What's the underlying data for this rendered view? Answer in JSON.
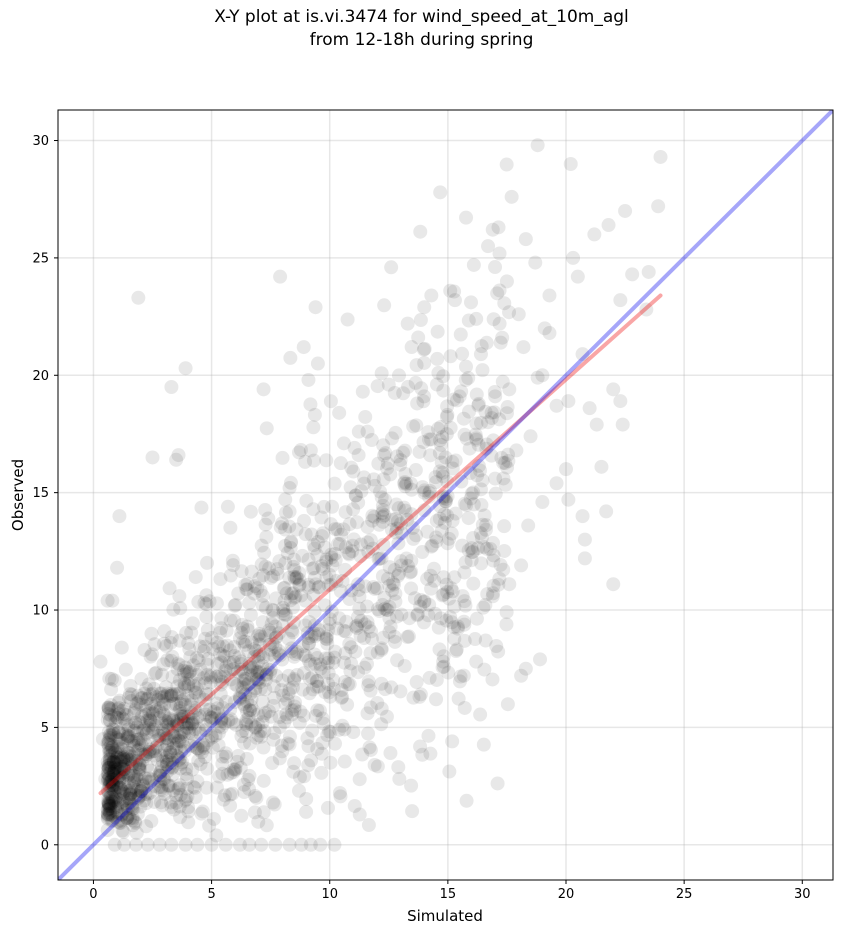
{
  "chart_data": {
    "type": "scatter",
    "title": "X-Y plot at is.vi.3474 for wind_speed_at_10m_agl",
    "subtitle": "from 12-18h during spring",
    "xlabel": "Simulated",
    "ylabel": "Observed",
    "xlim": [
      -1.5,
      31.3
    ],
    "ylim": [
      -1.5,
      31.3
    ],
    "xticks": [
      0,
      5,
      10,
      15,
      20,
      25,
      30
    ],
    "yticks": [
      0,
      5,
      10,
      15,
      20,
      25,
      30
    ],
    "grid": true,
    "point_color": "#000000",
    "point_opacity": 0.09,
    "one_to_one_line": {
      "x": [
        -1.5,
        31.3
      ],
      "y": [
        -1.5,
        31.3
      ],
      "color": "#0000ee"
    },
    "fit_line": {
      "x": [
        0.3,
        24.0
      ],
      "y": [
        2.2,
        23.4
      ],
      "color": "#ee0000"
    },
    "points_sample": [
      [
        0.3,
        7.8
      ],
      [
        0.4,
        4.5
      ],
      [
        0.6,
        10.4
      ],
      [
        0.8,
        10.4
      ],
      [
        1.1,
        14.0
      ],
      [
        1.0,
        11.8
      ],
      [
        1.9,
        23.3
      ],
      [
        3.3,
        19.5
      ],
      [
        3.9,
        20.3
      ],
      [
        2.5,
        16.5
      ],
      [
        3.5,
        16.4
      ],
      [
        3.6,
        16.6
      ],
      [
        7.9,
        24.2
      ],
      [
        9.4,
        22.9
      ],
      [
        8.9,
        21.2
      ],
      [
        9.5,
        20.5
      ],
      [
        9.1,
        19.8
      ],
      [
        7.2,
        19.4
      ],
      [
        10.6,
        17.1
      ],
      [
        11.4,
        19.3
      ],
      [
        12.6,
        24.6
      ],
      [
        13.3,
        22.2
      ],
      [
        14.0,
        22.9
      ],
      [
        14.3,
        23.4
      ],
      [
        15.1,
        23.6
      ],
      [
        15.3,
        23.2
      ],
      [
        16.1,
        24.7
      ],
      [
        16.2,
        22.4
      ],
      [
        16.9,
        26.2
      ],
      [
        16.7,
        25.5
      ],
      [
        17.7,
        27.6
      ],
      [
        18.3,
        25.8
      ],
      [
        18.7,
        24.8
      ],
      [
        18.8,
        29.8
      ],
      [
        20.2,
        29.0
      ],
      [
        20.3,
        25.0
      ],
      [
        20.5,
        24.2
      ],
      [
        21.2,
        26.0
      ],
      [
        21.8,
        26.4
      ],
      [
        22.5,
        27.0
      ],
      [
        22.8,
        24.3
      ],
      [
        23.4,
        22.8
      ],
      [
        23.5,
        24.4
      ],
      [
        23.9,
        27.2
      ],
      [
        24.0,
        29.3
      ],
      [
        22.3,
        23.2
      ],
      [
        22.0,
        19.4
      ],
      [
        22.3,
        18.9
      ],
      [
        22.4,
        17.9
      ],
      [
        21.5,
        16.1
      ],
      [
        21.7,
        14.2
      ],
      [
        22.0,
        11.1
      ],
      [
        20.8,
        12.2
      ],
      [
        20.8,
        13.0
      ],
      [
        20.7,
        14.0
      ],
      [
        20.1,
        14.7
      ],
      [
        20.0,
        16.0
      ],
      [
        19.0,
        14.6
      ],
      [
        19.6,
        15.4
      ],
      [
        18.4,
        13.6
      ],
      [
        18.9,
        7.9
      ],
      [
        18.3,
        7.5
      ],
      [
        18.1,
        7.2
      ],
      [
        17.6,
        11.1
      ],
      [
        18.1,
        11.9
      ],
      [
        16.8,
        12.6
      ],
      [
        16.6,
        8.7
      ],
      [
        16.5,
        10.1
      ],
      [
        16.2,
        7.8
      ],
      [
        15.7,
        11.6
      ],
      [
        15.1,
        9.7
      ],
      [
        14.8,
        7.8
      ],
      [
        14.5,
        6.2
      ],
      [
        13.8,
        6.3
      ],
      [
        12.2,
        5.8
      ],
      [
        11.9,
        3.4
      ],
      [
        11.6,
        5.6
      ],
      [
        11.0,
        4.8
      ],
      [
        10.4,
        4.9
      ],
      [
        9.8,
        6.5
      ],
      [
        9.1,
        4.2
      ],
      [
        9.0,
        1.4
      ],
      [
        8.7,
        2.3
      ],
      [
        6.9,
        2.0
      ],
      [
        5.1,
        1.1
      ],
      [
        5.2,
        0.4
      ],
      [
        7.6,
        1.8
      ],
      [
        10.2,
        0.0
      ],
      [
        9.6,
        0.0
      ],
      [
        9.2,
        0.0
      ],
      [
        8.8,
        0.0
      ],
      [
        8.3,
        0.0
      ],
      [
        7.7,
        0.0
      ],
      [
        7.1,
        0.0
      ],
      [
        6.6,
        0.0
      ],
      [
        6.2,
        0.0
      ],
      [
        5.6,
        0.0
      ],
      [
        5.0,
        0.0
      ],
      [
        4.4,
        0.0
      ],
      [
        3.9,
        0.0
      ],
      [
        3.3,
        0.0
      ],
      [
        2.8,
        0.0
      ],
      [
        2.3,
        0.0
      ],
      [
        1.8,
        0.0
      ],
      [
        1.3,
        0.0
      ],
      [
        0.9,
        0.0
      ],
      [
        0.5,
        2.8
      ],
      [
        0.7,
        5.3
      ],
      [
        0.9,
        7.0
      ],
      [
        1.2,
        8.4
      ],
      [
        1.5,
        3.9
      ],
      [
        1.8,
        5.8
      ],
      [
        2.1,
        2.5
      ],
      [
        2.4,
        6.4
      ],
      [
        2.7,
        4.2
      ],
      [
        3.0,
        9.1
      ],
      [
        3.2,
        3.3
      ],
      [
        3.5,
        6.0
      ],
      [
        3.8,
        4.8
      ],
      [
        4.1,
        8.0
      ],
      [
        4.4,
        2.7
      ],
      [
        4.7,
        10.3
      ],
      [
        5.0,
        5.4
      ],
      [
        5.3,
        7.2
      ],
      [
        5.6,
        3.9
      ],
      [
        5.9,
        12.1
      ],
      [
        6.2,
        8.8
      ],
      [
        6.5,
        6.1
      ],
      [
        6.8,
        10.7
      ],
      [
        7.1,
        4.6
      ],
      [
        7.4,
        13.9
      ],
      [
        7.7,
        9.3
      ],
      [
        8.0,
        7.0
      ],
      [
        8.3,
        15.2
      ],
      [
        8.6,
        11.4
      ],
      [
        8.9,
        8.1
      ],
      [
        9.2,
        16.8
      ],
      [
        9.5,
        12.9
      ],
      [
        9.8,
        10.2
      ],
      [
        10.1,
        14.4
      ],
      [
        10.4,
        18.4
      ],
      [
        10.7,
        9.5
      ],
      [
        11.0,
        15.9
      ],
      [
        11.3,
        12.3
      ],
      [
        11.6,
        17.6
      ],
      [
        11.9,
        10.9
      ],
      [
        12.2,
        14.8
      ],
      [
        12.5,
        19.6
      ],
      [
        12.8,
        13.3
      ],
      [
        13.1,
        16.7
      ],
      [
        13.4,
        11.6
      ],
      [
        13.7,
        18.8
      ],
      [
        14.0,
        15.0
      ],
      [
        14.3,
        12.7
      ],
      [
        14.6,
        20.1
      ],
      [
        14.9,
        16.5
      ],
      [
        15.2,
        13.8
      ],
      [
        15.5,
        19.1
      ],
      [
        15.8,
        17.3
      ],
      [
        16.1,
        14.5
      ],
      [
        16.4,
        20.9
      ],
      [
        16.7,
        18.0
      ],
      [
        17.0,
        15.6
      ],
      [
        17.3,
        21.6
      ],
      [
        17.6,
        19.4
      ],
      [
        17.9,
        16.8
      ],
      [
        18.2,
        21.2
      ],
      [
        18.5,
        17.4
      ],
      [
        18.8,
        19.9
      ],
      [
        19.1,
        22.0
      ],
      [
        19.3,
        21.8
      ],
      [
        19.6,
        18.7
      ],
      [
        20.1,
        18.9
      ],
      [
        20.7,
        20.9
      ],
      [
        21.0,
        18.6
      ],
      [
        21.3,
        17.9
      ],
      [
        19.3,
        23.4
      ],
      [
        18.0,
        22.6
      ],
      [
        17.5,
        24.0
      ],
      [
        19.0,
        20.0
      ]
    ]
  }
}
